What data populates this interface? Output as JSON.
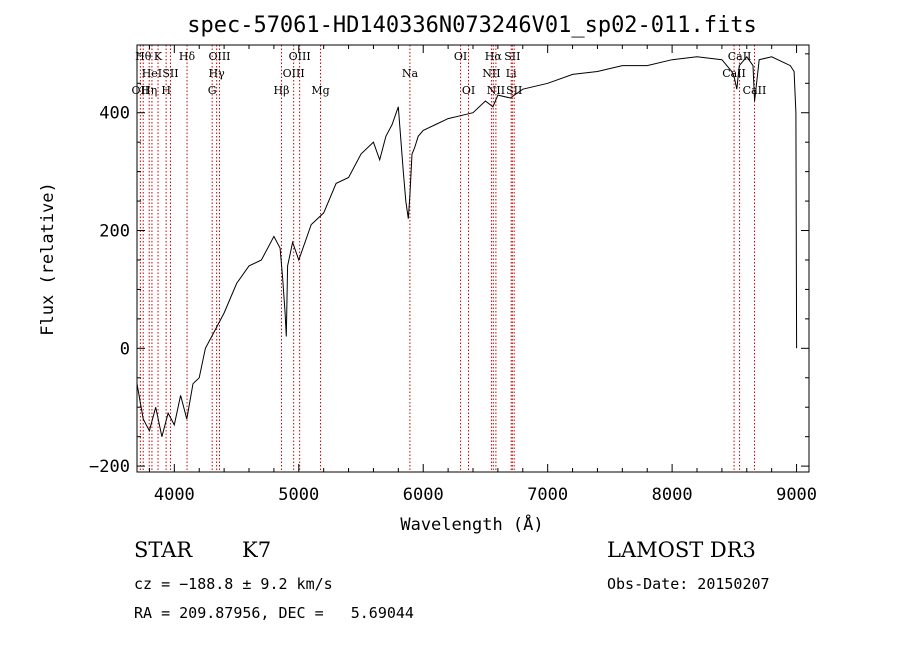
{
  "chart_data": {
    "type": "line",
    "title": "spec-57061-HD140336N073246V01_sp02-011.fits",
    "xlabel": "Wavelength (Å)",
    "ylabel": "Flux (relative)",
    "xlim": [
      3700,
      9100
    ],
    "ylim": [
      -210,
      515
    ],
    "xticks": [
      4000,
      5000,
      6000,
      7000,
      8000,
      9000
    ],
    "yticks": [
      -200,
      0,
      200,
      400
    ],
    "xtick_labels": [
      "4000",
      "5000",
      "6000",
      "7000",
      "8000",
      "9000"
    ],
    "ytick_labels": [
      "−200",
      "0",
      "200",
      "400"
    ],
    "series_color": "#000000",
    "marker_color": "#cc0000",
    "spectrum": {
      "x": [
        3700,
        3750,
        3800,
        3850,
        3900,
        3950,
        4000,
        4050,
        4100,
        4150,
        4200,
        4250,
        4300,
        4400,
        4500,
        4600,
        4700,
        4800,
        4850,
        4870,
        4890,
        4900,
        4910,
        4930,
        4950,
        5000,
        5100,
        5200,
        5300,
        5400,
        5500,
        5600,
        5650,
        5700,
        5750,
        5800,
        5840,
        5860,
        5880,
        5893,
        5910,
        5930,
        5960,
        6000,
        6100,
        6200,
        6300,
        6400,
        6500,
        6560,
        6600,
        6700,
        6800,
        7000,
        7200,
        7400,
        7600,
        7800,
        8000,
        8200,
        8400,
        8480,
        8500,
        8520,
        8540,
        8560,
        8600,
        8650,
        8663,
        8700,
        8800,
        8900,
        8950,
        8980,
        8995,
        9000
      ],
      "y": [
        -60,
        -120,
        -140,
        -100,
        -150,
        -110,
        -130,
        -80,
        -120,
        -60,
        -50,
        0,
        20,
        60,
        110,
        140,
        150,
        190,
        170,
        120,
        60,
        20,
        140,
        160,
        180,
        150,
        210,
        230,
        280,
        290,
        330,
        350,
        320,
        360,
        380,
        410,
        300,
        250,
        220,
        260,
        330,
        340,
        360,
        370,
        380,
        390,
        395,
        400,
        420,
        410,
        430,
        425,
        440,
        450,
        465,
        470,
        480,
        480,
        490,
        495,
        490,
        470,
        460,
        440,
        480,
        485,
        495,
        480,
        420,
        490,
        495,
        485,
        480,
        470,
        400,
        0
      ]
    },
    "lines": [
      {
        "w": 3727,
        "label": "OII",
        "row": 3
      },
      {
        "w": 3750,
        "label": "Hθ",
        "row": 1
      },
      {
        "w": 3798,
        "label": "Hη",
        "row": 3
      },
      {
        "w": 3820,
        "label": "HeI",
        "row": 2
      },
      {
        "w": 3869,
        "label": "K",
        "row": 1
      },
      {
        "w": 3934,
        "label": "H",
        "row": 3
      },
      {
        "w": 3969,
        "label": "SII",
        "row": 2
      },
      {
        "w": 4102,
        "label": "Hδ",
        "row": 1
      },
      {
        "w": 4304,
        "label": "G",
        "row": 3
      },
      {
        "w": 4340,
        "label": "Hγ",
        "row": 2
      },
      {
        "w": 4363,
        "label": "OIII",
        "row": 1
      },
      {
        "w": 4861,
        "label": "Hβ",
        "row": 3
      },
      {
        "w": 4959,
        "label": "OIII",
        "row": 2
      },
      {
        "w": 5007,
        "label": "OIII",
        "row": 1
      },
      {
        "w": 5175,
        "label": "Mg",
        "row": 3
      },
      {
        "w": 5893,
        "label": "Na",
        "row": 2
      },
      {
        "w": 6300,
        "label": "OI",
        "row": 1
      },
      {
        "w": 6364,
        "label": "OI",
        "row": 3
      },
      {
        "w": 6548,
        "label": "NII",
        "row": 2
      },
      {
        "w": 6563,
        "label": "Hα",
        "row": 1
      },
      {
        "w": 6584,
        "label": "NII",
        "row": 3
      },
      {
        "w": 6707,
        "label": "Li",
        "row": 2
      },
      {
        "w": 6716,
        "label": "SII",
        "row": 1
      },
      {
        "w": 6731,
        "label": "SII",
        "row": 3
      },
      {
        "w": 8498,
        "label": "CaII",
        "row": 2
      },
      {
        "w": 8542,
        "label": "CaII",
        "row": 1
      },
      {
        "w": 8662,
        "label": "CaII",
        "row": 3
      }
    ]
  },
  "info": {
    "class_label": "STAR",
    "subclass": "K7",
    "cz": "cz = −188.8 ± 9.2 km/s",
    "coords": "RA = 209.87956, DEC =   5.69044",
    "survey": "LAMOST DR3",
    "obs_date": "Obs-Date: 20150207"
  }
}
